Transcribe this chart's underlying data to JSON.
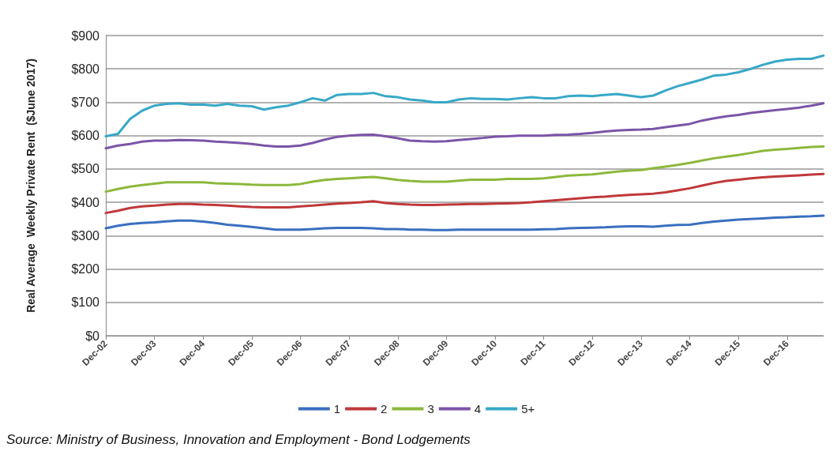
{
  "chart_data": {
    "type": "line",
    "ylabel": "Real Average  Weekly Private Rent  ($June 2017)",
    "categories": [
      "Dec-02",
      null,
      null,
      null,
      "Dec-03",
      null,
      null,
      null,
      "Dec-04",
      null,
      null,
      null,
      "Dec-05",
      null,
      null,
      null,
      "Dec-06",
      null,
      null,
      null,
      "Dec-07",
      null,
      null,
      null,
      "Dec-08",
      null,
      null,
      null,
      "Dec-09",
      null,
      null,
      null,
      "Dec-10",
      null,
      null,
      null,
      "Dec-11",
      null,
      null,
      null,
      "Dec-12",
      null,
      null,
      null,
      "Dec-13",
      null,
      null,
      null,
      "Dec-14",
      null,
      null,
      null,
      "Dec-15",
      null,
      null,
      null,
      "Dec-16",
      null,
      null,
      null
    ],
    "series": [
      {
        "name": "1",
        "color": "#3a6fc0",
        "values": [
          322,
          330,
          335,
          338,
          340,
          343,
          345,
          345,
          342,
          338,
          333,
          330,
          326,
          322,
          318,
          318,
          318,
          320,
          322,
          323,
          323,
          323,
          322,
          320,
          320,
          318,
          318,
          317,
          317,
          318,
          318,
          318,
          318,
          318,
          318,
          318,
          319,
          320,
          322,
          323,
          324,
          325,
          327,
          328,
          328,
          327,
          330,
          332,
          333,
          338,
          342,
          345,
          348,
          350,
          352,
          354,
          355,
          357,
          358,
          360
        ]
      },
      {
        "name": "2",
        "color": "#c0383a",
        "values": [
          368,
          375,
          383,
          388,
          390,
          393,
          395,
          395,
          393,
          392,
          390,
          388,
          386,
          385,
          385,
          385,
          388,
          390,
          393,
          396,
          398,
          400,
          403,
          398,
          395,
          393,
          392,
          392,
          393,
          394,
          395,
          395,
          396,
          397,
          398,
          400,
          403,
          406,
          409,
          412,
          415,
          417,
          420,
          422,
          424,
          426,
          430,
          436,
          442,
          450,
          458,
          464,
          468,
          472,
          475,
          477,
          479,
          481,
          483,
          485
        ]
      },
      {
        "name": "3",
        "color": "#8db83c",
        "values": [
          432,
          440,
          447,
          452,
          456,
          460,
          460,
          460,
          460,
          457,
          456,
          455,
          453,
          452,
          452,
          452,
          455,
          462,
          467,
          470,
          472,
          474,
          476,
          472,
          467,
          464,
          462,
          462,
          462,
          465,
          468,
          468,
          468,
          470,
          470,
          470,
          472,
          476,
          480,
          482,
          484,
          488,
          492,
          495,
          497,
          502,
          507,
          512,
          518,
          525,
          532,
          537,
          542,
          548,
          554,
          558,
          560,
          563,
          566,
          567
        ]
      },
      {
        "name": "4",
        "color": "#7b55a8",
        "values": [
          562,
          570,
          575,
          582,
          585,
          585,
          587,
          586,
          585,
          582,
          580,
          578,
          575,
          570,
          567,
          567,
          570,
          578,
          588,
          596,
          600,
          602,
          603,
          598,
          592,
          585,
          583,
          582,
          583,
          587,
          590,
          593,
          597,
          598,
          600,
          600,
          600,
          602,
          603,
          605,
          608,
          612,
          615,
          617,
          618,
          620,
          625,
          630,
          635,
          645,
          652,
          658,
          662,
          668,
          672,
          676,
          680,
          684,
          690,
          697
        ]
      },
      {
        "name": "5+",
        "color": "#38a8c8",
        "values": [
          598,
          605,
          650,
          675,
          690,
          695,
          697,
          693,
          693,
          690,
          695,
          690,
          688,
          678,
          685,
          690,
          700,
          712,
          705,
          722,
          725,
          725,
          728,
          718,
          715,
          708,
          705,
          700,
          700,
          708,
          712,
          710,
          710,
          708,
          712,
          715,
          712,
          712,
          718,
          720,
          718,
          722,
          725,
          720,
          715,
          720,
          735,
          748,
          758,
          768,
          780,
          783,
          790,
          800,
          812,
          822,
          828,
          830,
          830,
          840
        ]
      }
    ],
    "ylim": [
      0,
      900
    ],
    "yticks": [
      {
        "value": 0,
        "label": "$0"
      },
      {
        "value": 100,
        "label": "$100"
      },
      {
        "value": 200,
        "label": "$200"
      },
      {
        "value": 300,
        "label": "$300"
      },
      {
        "value": 400,
        "label": "$400"
      },
      {
        "value": 500,
        "label": "$500"
      },
      {
        "value": 600,
        "label": "$600"
      },
      {
        "value": 700,
        "label": "$700"
      },
      {
        "value": 800,
        "label": "$800"
      },
      {
        "value": 900,
        "label": "$900"
      }
    ],
    "grid": "y",
    "legend": "bottom",
    "marker": "none",
    "line_style": "solid",
    "annotations": [
      "Source: Ministry of Business, Innovation and Employment - Bond Lodgements"
    ]
  }
}
